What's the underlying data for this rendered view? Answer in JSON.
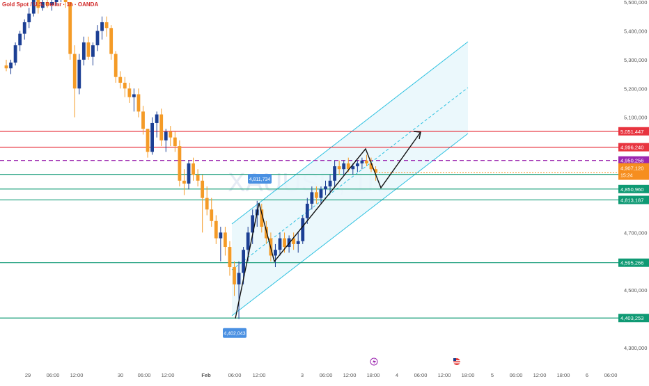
{
  "header": {
    "title": "Gold Spot / U.S. Dollar · 1h · OANDA"
  },
  "watermark": "XAUUSD, 1h",
  "colors": {
    "bull": "#1c3f94",
    "bear": "#f49b27",
    "resistance": "#e8343f",
    "support": "#0f9a74",
    "pivot": "#9c27b0",
    "channel": "#2cc1e0",
    "current": "#f68e1f",
    "callout": "#4a90e2"
  },
  "chart_data": {
    "type": "candlestick",
    "symbol": "XAUUSD",
    "timeframe": "1h",
    "x_tick_labels": [
      "29",
      "06:00",
      "12:00",
      "30",
      "06:00",
      "12:00",
      "Feb",
      "06:00",
      "12:00",
      "3",
      "06:00",
      "12:00",
      "18:00",
      "4",
      "06:00",
      "12:00",
      "18:00",
      "5",
      "06:00",
      "12:00",
      "18:00",
      "6",
      "06:00"
    ],
    "y_tick_labels": [
      "5,500,000",
      "5,400,000",
      "5,300,000",
      "5,200,000",
      "5,100,000",
      "4,700,000",
      "4,500,000",
      "4,300,000"
    ],
    "ylim": [
      4.28,
      5.52
    ],
    "y_ticks": [
      5.5,
      5.4,
      5.3,
      5.2,
      5.1,
      4.7,
      4.5,
      4.3
    ],
    "levels": [
      {
        "label": "5,051,447",
        "value": 5.051447,
        "kind": "resistance"
      },
      {
        "label": "4,996,240",
        "value": 4.99624,
        "kind": "resistance"
      },
      {
        "label": "4,950,256",
        "value": 4.950256,
        "kind": "pivot"
      },
      {
        "label": "4,901,808",
        "value": 4.901808,
        "kind": "support"
      },
      {
        "label": "4,850,960",
        "value": 4.85096,
        "kind": "support"
      },
      {
        "label": "4,813,187",
        "value": 4.813187,
        "kind": "support"
      },
      {
        "label": "4,595,266",
        "value": 4.595266,
        "kind": "support"
      },
      {
        "label": "4,403,253",
        "value": 4.403253,
        "kind": "support"
      }
    ],
    "current_price": {
      "label": "4,907,120",
      "countdown": "15:24",
      "value": 4.90712
    },
    "callouts": [
      {
        "label": "4,811,734",
        "value": 4.811734
      },
      {
        "label": "4,402,043",
        "value": 4.402043
      }
    ],
    "candles": [
      [
        5.28,
        5.3,
        5.26,
        5.27
      ],
      [
        5.27,
        5.3,
        5.25,
        5.29
      ],
      [
        5.29,
        5.36,
        5.28,
        5.35
      ],
      [
        5.35,
        5.4,
        5.33,
        5.39
      ],
      [
        5.39,
        5.44,
        5.37,
        5.43
      ],
      [
        5.43,
        5.48,
        5.41,
        5.46
      ],
      [
        5.46,
        5.52,
        5.45,
        5.51
      ],
      [
        5.51,
        5.52,
        5.46,
        5.48
      ],
      [
        5.48,
        5.52,
        5.47,
        5.5
      ],
      [
        5.5,
        5.52,
        5.48,
        5.49
      ],
      [
        5.49,
        5.51,
        5.47,
        5.5
      ],
      [
        5.5,
        5.52,
        5.49,
        5.51
      ],
      [
        5.51,
        5.52,
        5.5,
        5.52
      ],
      [
        5.52,
        5.52,
        5.48,
        5.5
      ],
      [
        5.5,
        5.5,
        5.3,
        5.32
      ],
      [
        5.32,
        5.35,
        5.1,
        5.2
      ],
      [
        5.2,
        5.32,
        5.18,
        5.3
      ],
      [
        5.3,
        5.38,
        5.28,
        5.36
      ],
      [
        5.36,
        5.38,
        5.3,
        5.31
      ],
      [
        5.31,
        5.36,
        5.28,
        5.35
      ],
      [
        5.35,
        5.42,
        5.33,
        5.4
      ],
      [
        5.4,
        5.45,
        5.37,
        5.43
      ],
      [
        5.43,
        5.45,
        5.38,
        5.41
      ],
      [
        5.41,
        5.42,
        5.3,
        5.32
      ],
      [
        5.32,
        5.33,
        5.22,
        5.24
      ],
      [
        5.24,
        5.26,
        5.2,
        5.22
      ],
      [
        5.22,
        5.24,
        5.17,
        5.2
      ],
      [
        5.2,
        5.22,
        5.15,
        5.17
      ],
      [
        5.17,
        5.2,
        5.12,
        5.18
      ],
      [
        5.18,
        5.2,
        5.1,
        5.12
      ],
      [
        5.12,
        5.14,
        5.04,
        5.06
      ],
      [
        5.06,
        5.06,
        4.96,
        4.98
      ],
      [
        4.98,
        5.1,
        4.97,
        5.08
      ],
      [
        5.08,
        5.12,
        5.03,
        5.11
      ],
      [
        5.11,
        5.13,
        5.0,
        5.02
      ],
      [
        5.02,
        5.06,
        4.98,
        5.05
      ],
      [
        5.05,
        5.07,
        5.0,
        5.03
      ],
      [
        5.03,
        5.05,
        4.98,
        5.0
      ],
      [
        5.0,
        5.02,
        4.86,
        4.88
      ],
      [
        4.88,
        4.92,
        4.83,
        4.87
      ],
      [
        4.87,
        4.95,
        4.85,
        4.94
      ],
      [
        4.94,
        4.96,
        4.88,
        4.9
      ],
      [
        4.9,
        4.92,
        4.86,
        4.88
      ],
      [
        4.88,
        4.9,
        4.7,
        4.82
      ],
      [
        4.82,
        4.86,
        4.76,
        4.78
      ],
      [
        4.78,
        4.82,
        4.72,
        4.74
      ],
      [
        4.74,
        4.76,
        4.66,
        4.68
      ],
      [
        4.68,
        4.72,
        4.6,
        4.7
      ],
      [
        4.7,
        4.72,
        4.62,
        4.65
      ],
      [
        4.65,
        4.67,
        4.55,
        4.58
      ],
      [
        4.58,
        4.6,
        4.48,
        4.52
      ],
      [
        4.52,
        4.6,
        4.4,
        4.56
      ],
      [
        4.56,
        4.65,
        4.52,
        4.64
      ],
      [
        4.64,
        4.72,
        4.6,
        4.7
      ],
      [
        4.7,
        4.78,
        4.66,
        4.76
      ],
      [
        4.76,
        4.81,
        4.72,
        4.78
      ],
      [
        4.78,
        4.8,
        4.7,
        4.72
      ],
      [
        4.72,
        4.74,
        4.66,
        4.68
      ],
      [
        4.68,
        4.7,
        4.6,
        4.62
      ],
      [
        4.62,
        4.66,
        4.58,
        4.64
      ],
      [
        4.64,
        4.7,
        4.62,
        4.68
      ],
      [
        4.68,
        4.7,
        4.63,
        4.65
      ],
      [
        4.65,
        4.69,
        4.63,
        4.68
      ],
      [
        4.68,
        4.7,
        4.64,
        4.66
      ],
      [
        4.66,
        4.7,
        4.63,
        4.67
      ],
      [
        4.67,
        4.76,
        4.66,
        4.75
      ],
      [
        4.75,
        4.82,
        4.73,
        4.8
      ],
      [
        4.8,
        4.86,
        4.78,
        4.84
      ],
      [
        4.84,
        4.86,
        4.8,
        4.82
      ],
      [
        4.82,
        4.86,
        4.8,
        4.85
      ],
      [
        4.85,
        4.88,
        4.83,
        4.86
      ],
      [
        4.86,
        4.9,
        4.84,
        4.88
      ],
      [
        4.88,
        4.95,
        4.86,
        4.93
      ],
      [
        4.93,
        4.95,
        4.9,
        4.92
      ],
      [
        4.92,
        4.95,
        4.9,
        4.94
      ],
      [
        4.94,
        4.96,
        4.91,
        4.92
      ],
      [
        4.92,
        4.94,
        4.9,
        4.93
      ],
      [
        4.93,
        4.95,
        4.91,
        4.94
      ],
      [
        4.94,
        4.96,
        4.92,
        4.95
      ],
      [
        4.95,
        4.97,
        4.93,
        4.94
      ],
      [
        4.94,
        4.96,
        4.91,
        4.92
      ],
      [
        4.92,
        4.93,
        4.88,
        4.91
      ]
    ],
    "drawings": {
      "channel_note": "ascending parallel channel with dashed midline, shaded light cyan",
      "projection_note": "zigzag path ending in arrow toward the 5,051,447 level"
    }
  }
}
